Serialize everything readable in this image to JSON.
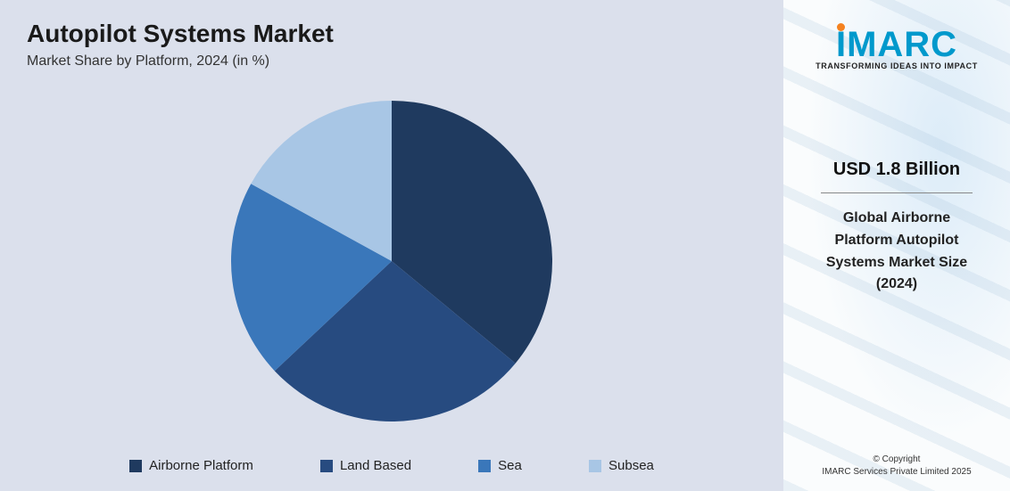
{
  "left": {
    "title": "Autopilot Systems Market",
    "subtitle": "Market Share by Platform, 2024 (in %)",
    "background_color": "#dbe0ec"
  },
  "pie_chart": {
    "type": "pie",
    "radius": 180,
    "start_angle_deg": 0,
    "background_color": "#dbe0ec",
    "slices": [
      {
        "label": "Airborne Platform",
        "value": 36,
        "color": "#1f3a5f"
      },
      {
        "label": "Land Based",
        "value": 27,
        "color": "#274b80"
      },
      {
        "label": "Sea",
        "value": 20,
        "color": "#3a77ba"
      },
      {
        "label": "Subsea",
        "value": 17,
        "color": "#a8c6e5"
      }
    ],
    "legend": {
      "position": "bottom",
      "font_size": 15,
      "swatch_size": 14,
      "text_color": "#222222"
    }
  },
  "right": {
    "logo": {
      "text": "IMARC",
      "brand_color": "#0099cc",
      "dot_color": "#f58220",
      "tagline": "TRANSFORMING IDEAS INTO IMPACT"
    },
    "stat": {
      "value": "USD 1.8 Billion",
      "label_line1": "Global Airborne",
      "label_line2": "Platform Autopilot",
      "label_line3": "Systems Market Size",
      "label_line4": "(2024)"
    },
    "copyright": {
      "line1": "© Copyright",
      "line2": "IMARC Services Private Limited 2025"
    },
    "background_color": "#fafcfd"
  }
}
